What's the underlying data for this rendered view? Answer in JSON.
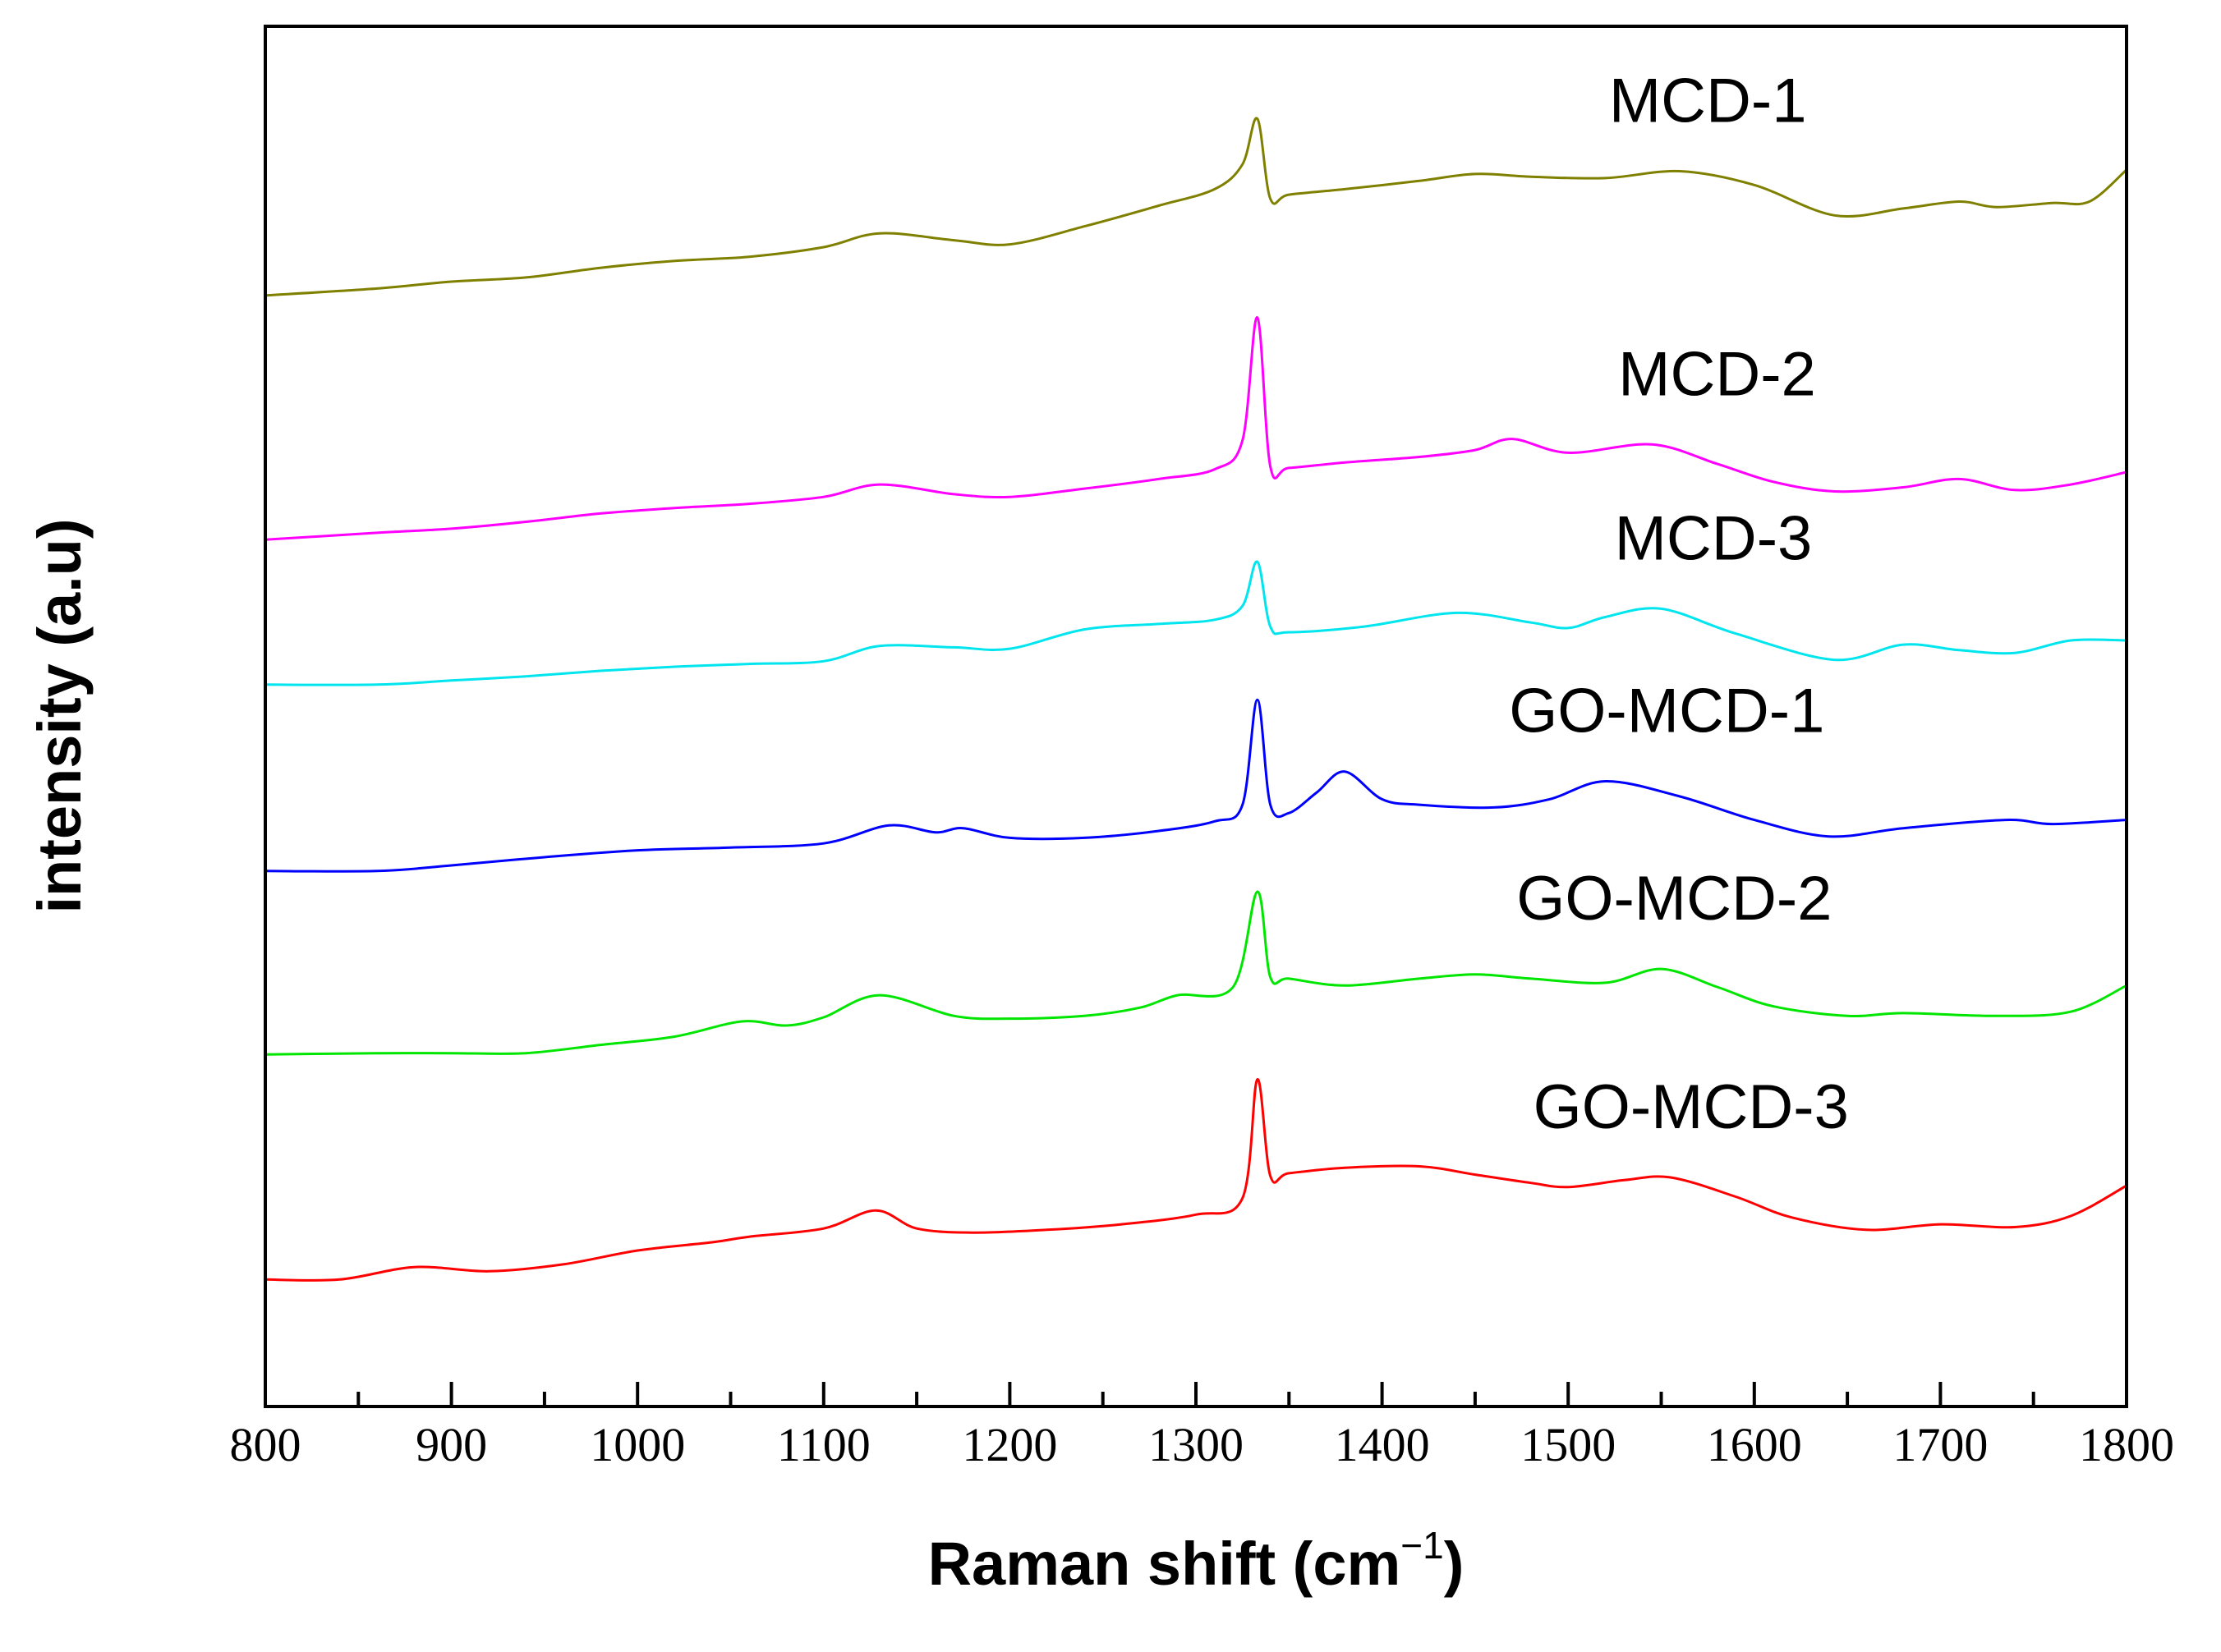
{
  "chart_data": {
    "type": "line",
    "title": "",
    "xlabel": "Raman shift (cm",
    "xlabel_superscript": "−1",
    "xlabel_suffix": ")",
    "ylabel": "intensity (a.u)",
    "xlim": [
      800,
      1800
    ],
    "ylim": [
      0,
      100
    ],
    "x_ticks": [
      800,
      900,
      1000,
      1100,
      1200,
      1300,
      1400,
      1500,
      1600,
      1700,
      1800
    ],
    "y_ticks_shown": false,
    "grid": false,
    "legend": "inline labels to the right of each curve",
    "series": [
      {
        "name": "MCD-1",
        "color": "#808000",
        "x": [
          800,
          860,
          900,
          940,
          980,
          1020,
          1060,
          1100,
          1130,
          1170,
          1200,
          1240,
          1280,
          1310,
          1325,
          1333,
          1340,
          1350,
          1380,
          1420,
          1450,
          1480,
          1520,
          1560,
          1600,
          1643,
          1680,
          1710,
          1730,
          1760,
          1780,
          1800
        ],
        "y": [
          80.5,
          81.0,
          81.5,
          81.8,
          82.5,
          83.0,
          83.3,
          84.0,
          85.0,
          84.5,
          84.2,
          85.5,
          87.0,
          88.2,
          90.0,
          93.3,
          87.5,
          87.8,
          88.2,
          88.8,
          89.3,
          89.1,
          89.0,
          89.5,
          88.5,
          86.3,
          86.8,
          87.3,
          86.9,
          87.2,
          87.3,
          89.6
        ]
      },
      {
        "name": "MCD-2",
        "color": "#ff00ff",
        "x": [
          800,
          860,
          900,
          940,
          980,
          1020,
          1060,
          1100,
          1130,
          1170,
          1200,
          1240,
          1280,
          1310,
          1325,
          1333,
          1340,
          1350,
          1380,
          1420,
          1450,
          1470,
          1500,
          1545,
          1580,
          1610,
          1643,
          1680,
          1710,
          1740,
          1770,
          1800
        ],
        "y": [
          62.8,
          63.3,
          63.6,
          64.1,
          64.7,
          65.1,
          65.4,
          65.9,
          66.8,
          66.1,
          65.9,
          66.5,
          67.2,
          67.9,
          70.0,
          78.9,
          68.1,
          68.0,
          68.4,
          68.8,
          69.3,
          70.1,
          69.1,
          69.7,
          68.3,
          67.0,
          66.3,
          66.6,
          67.2,
          66.4,
          66.8,
          67.7
        ]
      },
      {
        "name": "MCD-3",
        "color": "#00e5ee",
        "x": [
          800,
          860,
          900,
          940,
          980,
          1020,
          1060,
          1100,
          1130,
          1170,
          1200,
          1240,
          1280,
          1310,
          1325,
          1333,
          1340,
          1350,
          1390,
          1440,
          1480,
          1500,
          1520,
          1550,
          1590,
          1643,
          1680,
          1710,
          1740,
          1770,
          1800
        ],
        "y": [
          52.3,
          52.3,
          52.6,
          52.9,
          53.3,
          53.6,
          53.8,
          54.0,
          55.1,
          55.0,
          54.9,
          56.3,
          56.7,
          57.0,
          58.0,
          61.2,
          56.5,
          56.1,
          56.5,
          57.5,
          56.8,
          56.4,
          57.2,
          57.8,
          56.0,
          54.1,
          55.2,
          54.8,
          54.6,
          55.5,
          55.5
        ]
      },
      {
        "name": "GO-MCD-1",
        "color": "#0000ff",
        "x": [
          800,
          860,
          900,
          950,
          1000,
          1050,
          1100,
          1135,
          1160,
          1175,
          1200,
          1240,
          1280,
          1310,
          1325,
          1333,
          1340,
          1350,
          1365,
          1380,
          1400,
          1420,
          1460,
          1490,
          1520,
          1560,
          1600,
          1640,
          1680,
          1735,
          1760,
          1800
        ],
        "y": [
          38.8,
          38.8,
          39.2,
          39.8,
          40.3,
          40.5,
          40.8,
          42.1,
          41.6,
          41.9,
          41.2,
          41.2,
          41.7,
          42.4,
          43.6,
          51.2,
          43.6,
          43.0,
          44.5,
          46.0,
          44.0,
          43.6,
          43.4,
          44.0,
          45.3,
          44.2,
          42.5,
          41.3,
          41.9,
          42.5,
          42.2,
          42.5
        ]
      },
      {
        "name": "GO-MCD-2",
        "color": "#00e600",
        "x": [
          800,
          860,
          900,
          940,
          980,
          1020,
          1056,
          1080,
          1100,
          1130,
          1170,
          1200,
          1240,
          1270,
          1290,
          1320,
          1333,
          1340,
          1350,
          1380,
          1420,
          1450,
          1480,
          1520,
          1550,
          1580,
          1610,
          1650,
          1680,
          1730,
          1770,
          1800
        ],
        "y": [
          25.5,
          25.6,
          25.6,
          25.6,
          26.2,
          26.8,
          27.9,
          27.6,
          28.2,
          29.8,
          28.3,
          28.1,
          28.3,
          28.9,
          29.8,
          30.4,
          37.3,
          31.1,
          31.0,
          30.5,
          31.0,
          31.3,
          31.0,
          30.7,
          31.7,
          30.4,
          29.0,
          28.3,
          28.5,
          28.3,
          28.6,
          30.5
        ]
      },
      {
        "name": "GO-MCD-3",
        "color": "#ff0000",
        "x": [
          800,
          840,
          880,
          920,
          960,
          1000,
          1040,
          1060,
          1100,
          1128,
          1150,
          1180,
          1220,
          1260,
          1300,
          1325,
          1333,
          1340,
          1350,
          1380,
          1420,
          1450,
          1480,
          1500,
          1530,
          1555,
          1590,
          1620,
          1660,
          1700,
          1740,
          1770,
          1800
        ],
        "y": [
          9.2,
          9.2,
          10.1,
          9.8,
          10.3,
          11.3,
          11.9,
          12.3,
          12.9,
          14.2,
          12.9,
          12.6,
          12.8,
          13.2,
          13.9,
          15.1,
          23.7,
          16.7,
          16.9,
          17.3,
          17.4,
          16.8,
          16.2,
          15.9,
          16.4,
          16.6,
          15.2,
          13.7,
          12.8,
          13.2,
          13.0,
          13.8,
          16.0
        ]
      }
    ]
  }
}
